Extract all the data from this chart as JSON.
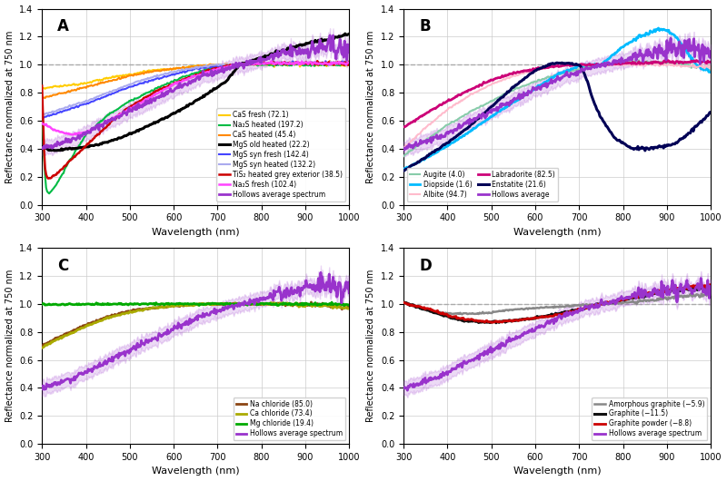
{
  "figsize": [
    8.0,
    5.3
  ],
  "dpi": 100,
  "xlim": [
    300,
    1000
  ],
  "ylim": [
    0.0,
    1.4
  ],
  "yticks": [
    0.0,
    0.2,
    0.4,
    0.6,
    0.8,
    1.0,
    1.2,
    1.4
  ],
  "xticks": [
    300,
    400,
    500,
    600,
    700,
    800,
    900,
    1000
  ],
  "xlabel": "Wavelength (nm)",
  "ylabel": "Reflectance normalized at 750 nm",
  "dashed_line_y": 1.0,
  "dashed_line_color": "#aaaaaa",
  "grid_color": "#cccccc",
  "hollows_x": [
    300,
    320,
    340,
    360,
    380,
    400,
    430,
    460,
    500,
    540,
    580,
    620,
    660,
    700,
    730,
    750,
    780,
    810,
    840,
    870,
    900,
    930,
    960,
    990,
    1000
  ],
  "hollows_y": [
    0.4,
    0.42,
    0.44,
    0.46,
    0.48,
    0.51,
    0.56,
    0.61,
    0.67,
    0.73,
    0.79,
    0.85,
    0.91,
    0.95,
    0.98,
    1.0,
    1.02,
    1.04,
    1.07,
    1.09,
    1.1,
    1.12,
    1.13,
    1.1,
    1.09
  ],
  "hollows_color": "#9933cc",
  "hollows_lw": 2.0,
  "hollows_fill_alpha": 0.18,
  "hollows_band": 0.05,
  "panel_A": {
    "label": "A",
    "legend_loc": "lower right",
    "legend_ncol": 1,
    "series": [
      {
        "name": "CaS fresh (72.1)",
        "color": "#ffcc00",
        "lw": 1.5,
        "x": [
          300,
          320,
          350,
          380,
          400,
          430,
          460,
          500,
          550,
          600,
          650,
          700,
          750,
          800,
          900,
          1000
        ],
        "y": [
          0.83,
          0.84,
          0.85,
          0.86,
          0.87,
          0.89,
          0.91,
          0.93,
          0.96,
          0.97,
          0.99,
          1.0,
          1.0,
          1.0,
          1.0,
          1.0
        ]
      },
      {
        "name": "Na₂S heated (197.2)",
        "color": "#00bb44",
        "lw": 1.5,
        "x": [
          300,
          305,
          310,
          315,
          320,
          340,
          360,
          400,
          450,
          500,
          560,
          620,
          680,
          720,
          750,
          800,
          900,
          1000
        ],
        "y": [
          0.68,
          0.3,
          0.1,
          0.08,
          0.09,
          0.18,
          0.3,
          0.5,
          0.64,
          0.74,
          0.83,
          0.91,
          0.97,
          0.99,
          1.0,
          1.0,
          1.0,
          1.0
        ]
      },
      {
        "name": "CaS heated (45.4)",
        "color": "#ff8800",
        "lw": 1.5,
        "x": [
          300,
          350,
          400,
          450,
          500,
          550,
          600,
          650,
          700,
          750,
          800,
          900,
          1000
        ],
        "y": [
          0.76,
          0.8,
          0.84,
          0.88,
          0.92,
          0.95,
          0.97,
          0.99,
          1.0,
          1.0,
          1.01,
          1.01,
          1.01
        ]
      },
      {
        "name": "MgS old heated (22.2)",
        "color": "#000000",
        "lw": 2.2,
        "x": [
          300,
          310,
          320,
          340,
          360,
          400,
          440,
          480,
          520,
          560,
          600,
          640,
          680,
          720,
          750,
          800,
          850,
          900,
          950,
          1000
        ],
        "y": [
          0.42,
          0.4,
          0.39,
          0.39,
          0.4,
          0.41,
          0.44,
          0.48,
          0.53,
          0.59,
          0.65,
          0.72,
          0.8,
          0.88,
          1.0,
          1.05,
          1.1,
          1.15,
          1.18,
          1.22
        ]
      },
      {
        "name": "MgS syn fresh (142.4)",
        "color": "#4444ff",
        "lw": 1.5,
        "x": [
          300,
          350,
          400,
          450,
          500,
          550,
          600,
          650,
          700,
          750,
          800,
          900,
          1000
        ],
        "y": [
          0.62,
          0.67,
          0.72,
          0.78,
          0.84,
          0.89,
          0.93,
          0.97,
          0.99,
          1.0,
          1.01,
          1.01,
          1.01
        ]
      },
      {
        "name": "MgS syn heated (132.2)",
        "color": "#aaaaee",
        "lw": 1.5,
        "x": [
          300,
          350,
          400,
          450,
          500,
          550,
          600,
          650,
          700,
          750,
          800,
          900,
          1000
        ],
        "y": [
          0.64,
          0.69,
          0.74,
          0.8,
          0.86,
          0.91,
          0.95,
          0.98,
          1.0,
          1.0,
          1.01,
          1.01,
          1.01
        ]
      },
      {
        "name": "TiS₂ heated grey exterior (38.5)",
        "color": "#cc0000",
        "lw": 1.8,
        "x": [
          300,
          303,
          306,
          310,
          315,
          320,
          330,
          350,
          380,
          420,
          460,
          500,
          560,
          620,
          680,
          720,
          750,
          800,
          900,
          1000
        ],
        "y": [
          0.85,
          0.55,
          0.28,
          0.2,
          0.19,
          0.19,
          0.21,
          0.27,
          0.36,
          0.48,
          0.6,
          0.7,
          0.81,
          0.89,
          0.96,
          0.99,
          1.0,
          1.01,
          1.01,
          1.01
        ]
      },
      {
        "name": "Na₂S fresh (102.4)",
        "color": "#ff44ff",
        "lw": 1.8,
        "x": [
          300,
          310,
          320,
          340,
          370,
          400,
          440,
          480,
          520,
          560,
          600,
          650,
          700,
          730,
          750,
          800,
          900,
          1000
        ],
        "y": [
          0.58,
          0.57,
          0.55,
          0.52,
          0.5,
          0.52,
          0.58,
          0.65,
          0.72,
          0.79,
          0.86,
          0.92,
          0.97,
          0.99,
          1.0,
          1.01,
          1.01,
          1.01
        ]
      }
    ]
  },
  "panel_B": {
    "label": "B",
    "legend_loc": "lower left",
    "legend_ncol": 2,
    "series": [
      {
        "name": "Augite (4.0)",
        "color": "#88ccaa",
        "lw": 1.5,
        "x": [
          300,
          350,
          400,
          450,
          500,
          550,
          600,
          650,
          700,
          750,
          800,
          850,
          900,
          950,
          1000
        ],
        "y": [
          0.35,
          0.46,
          0.57,
          0.66,
          0.74,
          0.82,
          0.88,
          0.93,
          0.97,
          1.0,
          1.02,
          1.02,
          1.01,
          1.0,
          0.96
        ]
      },
      {
        "name": "Diopside (1.6)",
        "color": "#00bbff",
        "lw": 2.0,
        "x": [
          300,
          350,
          400,
          450,
          500,
          550,
          600,
          650,
          700,
          720,
          750,
          800,
          850,
          880,
          900,
          920,
          940,
          960,
          980,
          1000
        ],
        "y": [
          0.25,
          0.33,
          0.42,
          0.52,
          0.63,
          0.73,
          0.83,
          0.93,
          0.99,
          1.0,
          1.0,
          1.13,
          1.22,
          1.25,
          1.24,
          1.2,
          1.12,
          1.02,
          0.97,
          0.95
        ]
      },
      {
        "name": "Albite (94.7)",
        "color": "#ffbbcc",
        "lw": 1.5,
        "x": [
          300,
          350,
          400,
          450,
          500,
          550,
          600,
          650,
          700,
          750,
          800,
          900,
          1000
        ],
        "y": [
          0.4,
          0.55,
          0.68,
          0.78,
          0.86,
          0.92,
          0.96,
          0.99,
          1.0,
          1.0,
          1.0,
          1.0,
          0.98
        ]
      },
      {
        "name": "Labradorite (82.5)",
        "color": "#cc0077",
        "lw": 2.0,
        "x": [
          300,
          350,
          400,
          450,
          500,
          550,
          600,
          650,
          700,
          750,
          800,
          900,
          1000
        ],
        "y": [
          0.55,
          0.65,
          0.74,
          0.82,
          0.89,
          0.94,
          0.97,
          0.99,
          1.0,
          1.0,
          1.01,
          1.02,
          1.02
        ]
      },
      {
        "name": "Enstatite (21.6)",
        "color": "#000055",
        "lw": 2.2,
        "x": [
          300,
          350,
          400,
          450,
          500,
          550,
          600,
          640,
          670,
          700,
          710,
          720,
          730,
          750,
          780,
          820,
          860,
          880,
          900,
          920,
          940,
          960,
          980,
          1000
        ],
        "y": [
          0.24,
          0.34,
          0.44,
          0.56,
          0.7,
          0.84,
          0.96,
          1.01,
          1.01,
          1.0,
          0.95,
          0.87,
          0.76,
          0.62,
          0.48,
          0.4,
          0.4,
          0.41,
          0.42,
          0.44,
          0.48,
          0.54,
          0.6,
          0.66
        ]
      }
    ]
  },
  "panel_C": {
    "label": "C",
    "legend_loc": "lower right",
    "legend_ncol": 1,
    "series": [
      {
        "name": "Na chloride (85.0)",
        "color": "#8B4513",
        "lw": 2.0,
        "x": [
          300,
          350,
          400,
          450,
          500,
          550,
          600,
          650,
          700,
          750,
          800,
          850,
          900,
          950,
          1000
        ],
        "y": [
          0.7,
          0.78,
          0.85,
          0.91,
          0.95,
          0.97,
          0.985,
          0.995,
          1.0,
          1.0,
          1.0,
          1.0,
          0.995,
          0.99,
          0.97
        ]
      },
      {
        "name": "Ca chloride (73.4)",
        "color": "#aaaa00",
        "lw": 2.0,
        "x": [
          300,
          350,
          400,
          450,
          500,
          550,
          600,
          650,
          700,
          750,
          800,
          850,
          900,
          950,
          1000
        ],
        "y": [
          0.69,
          0.77,
          0.84,
          0.9,
          0.94,
          0.97,
          0.985,
          0.995,
          1.0,
          1.0,
          1.0,
          1.0,
          0.99,
          0.985,
          0.97
        ]
      },
      {
        "name": "Mg chloride (19.4)",
        "color": "#00aa00",
        "lw": 2.0,
        "x": [
          300,
          400,
          500,
          600,
          700,
          750,
          800,
          900,
          1000
        ],
        "y": [
          0.995,
          0.998,
          1.0,
          1.0,
          1.0,
          1.0,
          1.0,
          1.0,
          0.995
        ]
      }
    ]
  },
  "panel_D": {
    "label": "D",
    "legend_loc": "lower right",
    "legend_ncol": 1,
    "series": [
      {
        "name": "Amorphous graphite (−5.9)",
        "color": "#888888",
        "lw": 1.8,
        "x": [
          300,
          320,
          350,
          380,
          410,
          440,
          470,
          500,
          550,
          600,
          650,
          700,
          750,
          800,
          850,
          900,
          950,
          1000
        ],
        "y": [
          1.01,
          0.99,
          0.96,
          0.94,
          0.93,
          0.93,
          0.93,
          0.94,
          0.96,
          0.97,
          0.98,
          0.99,
          1.0,
          1.01,
          1.02,
          1.04,
          1.06,
          1.07
        ]
      },
      {
        "name": "Graphite (−11.5)",
        "color": "#111111",
        "lw": 2.2,
        "x": [
          300,
          320,
          350,
          380,
          410,
          440,
          470,
          500,
          550,
          600,
          650,
          700,
          750,
          800,
          850,
          900,
          950,
          1000
        ],
        "y": [
          1.01,
          0.99,
          0.96,
          0.93,
          0.9,
          0.88,
          0.87,
          0.87,
          0.88,
          0.9,
          0.93,
          0.96,
          1.0,
          1.03,
          1.06,
          1.09,
          1.11,
          1.12
        ]
      },
      {
        "name": "Graphite powder (−8.8)",
        "color": "#cc0000",
        "lw": 2.0,
        "x": [
          300,
          320,
          350,
          380,
          410,
          440,
          470,
          500,
          550,
          600,
          650,
          700,
          750,
          800,
          850,
          900,
          950,
          1000
        ],
        "y": [
          1.01,
          0.99,
          0.97,
          0.94,
          0.91,
          0.89,
          0.88,
          0.87,
          0.88,
          0.9,
          0.92,
          0.96,
          1.0,
          1.03,
          1.07,
          1.1,
          1.12,
          1.13
        ]
      }
    ]
  }
}
